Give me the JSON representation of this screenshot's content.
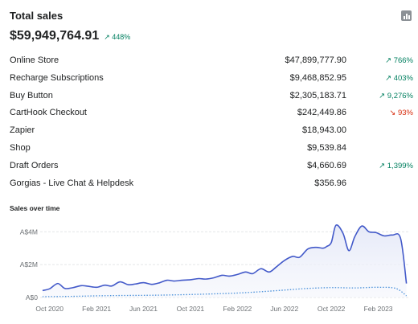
{
  "header": {
    "title": "Total sales",
    "icon": "bar-chart-icon"
  },
  "total": {
    "value": "$59,949,764.91",
    "change": "↗ 448%"
  },
  "channels": [
    {
      "name": "Online Store",
      "value": "$47,899,777.90",
      "change": "↗ 766%",
      "dir": "up"
    },
    {
      "name": "Recharge Subscriptions",
      "value": "$9,468,852.95",
      "change": "↗ 403%",
      "dir": "up"
    },
    {
      "name": "Buy Button",
      "value": "$2,305,183.71",
      "change": "↗ 9,276%",
      "dir": "up"
    },
    {
      "name": "CartHook Checkout",
      "value": "$242,449.86",
      "change": "↘ 93%",
      "dir": "down"
    },
    {
      "name": "Zapier",
      "value": "$18,943.00",
      "change": "",
      "dir": ""
    },
    {
      "name": "Shop",
      "value": "$9,539.84",
      "change": "",
      "dir": ""
    },
    {
      "name": "Draft Orders",
      "value": "$4,660.69",
      "change": "↗ 1,399%",
      "dir": "up"
    },
    {
      "name": "Gorgias - Live Chat & Helpdesk",
      "value": "$356.96",
      "change": "",
      "dir": ""
    }
  ],
  "chart_data": {
    "type": "line",
    "title": "Sales over time",
    "y_tick_labels": [
      "A$0",
      "A$2M",
      "A$4M"
    ],
    "y_tick_values": [
      0,
      2,
      4
    ],
    "ylim": [
      0,
      4.6
    ],
    "x_tick_labels": [
      "Oct 2020",
      "Feb 2021",
      "Jun 2021",
      "Oct 2021",
      "Feb 2022",
      "Jun 2022",
      "Oct 2022",
      "Feb 2023"
    ],
    "x_tick_positions": [
      0,
      4,
      8,
      12,
      16,
      20,
      24,
      28
    ],
    "xlim": [
      -0.8,
      30.7
    ],
    "grid": true,
    "colors": {
      "current": "#4259c9",
      "previous": "#4a90d9"
    },
    "series": [
      {
        "style": "solid",
        "x": [
          -0.6,
          0,
          0.7,
          1.3,
          2,
          2.7,
          3.3,
          4,
          4.7,
          5.3,
          6,
          6.7,
          7.3,
          8,
          8.7,
          9.3,
          10,
          10.6,
          11.3,
          12,
          12.7,
          13.3,
          14,
          14.7,
          15.3,
          16,
          16.7,
          17.3,
          18,
          18.7,
          19.3,
          20,
          20.7,
          21.3,
          22,
          22.7,
          23.3,
          23.6,
          24,
          24.4,
          25,
          25.5,
          26,
          26.6,
          27.2,
          27.8,
          28.5,
          29.2,
          29.9,
          30.4
        ],
        "y": [
          0.42,
          0.53,
          0.85,
          0.55,
          0.6,
          0.72,
          0.68,
          0.62,
          0.75,
          0.7,
          0.95,
          0.78,
          0.82,
          0.9,
          0.8,
          0.88,
          1.05,
          1.0,
          1.05,
          1.08,
          1.15,
          1.12,
          1.2,
          1.35,
          1.3,
          1.4,
          1.55,
          1.45,
          1.75,
          1.55,
          1.85,
          2.25,
          2.5,
          2.45,
          2.95,
          3.05,
          3.0,
          3.1,
          3.35,
          4.4,
          3.9,
          2.85,
          3.7,
          4.35,
          4.0,
          3.95,
          3.75,
          3.8,
          3.6,
          0.85
        ]
      },
      {
        "style": "dotted",
        "x": [
          -0.6,
          2,
          4,
          6,
          8,
          10,
          12,
          14,
          16,
          18,
          20,
          22,
          24,
          26,
          28,
          29.5,
          30.4
        ],
        "y": [
          0.05,
          0.07,
          0.1,
          0.12,
          0.13,
          0.15,
          0.18,
          0.22,
          0.27,
          0.35,
          0.45,
          0.55,
          0.6,
          0.58,
          0.62,
          0.55,
          0.1
        ]
      }
    ]
  }
}
